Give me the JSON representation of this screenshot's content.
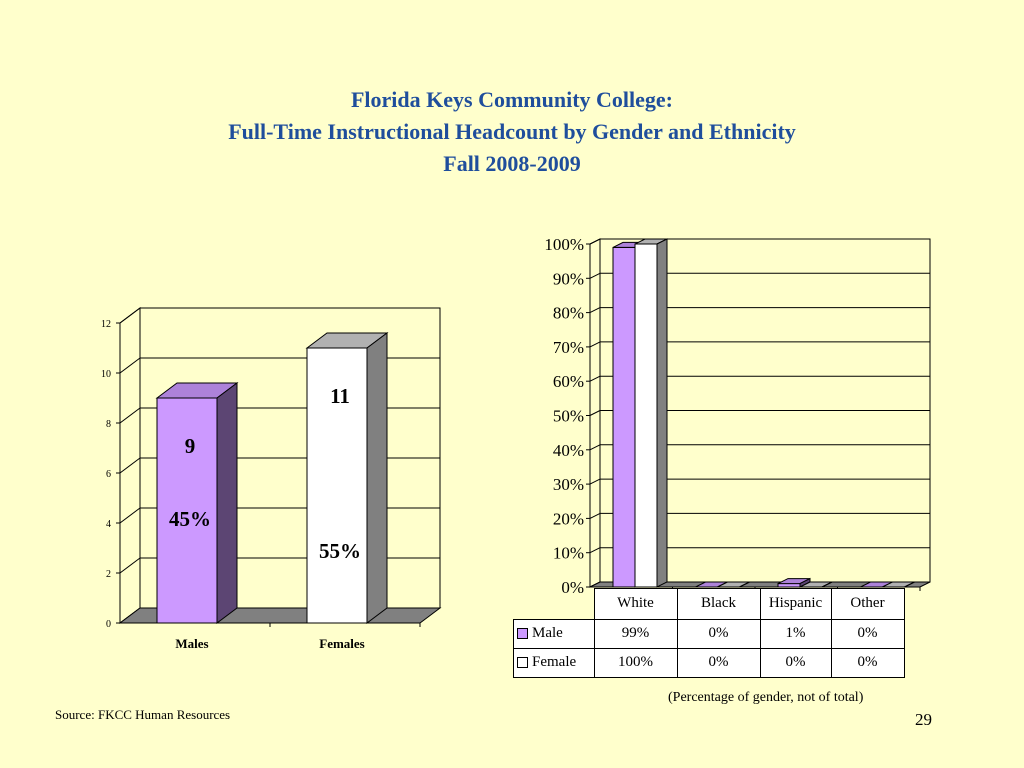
{
  "title": {
    "line1": "Florida Keys Community College:",
    "line2": "Full-Time Instructional Headcount by Gender and Ethnicity",
    "line3": "Fall 2008-2009"
  },
  "colors": {
    "male": "#cc99ff",
    "female": "#ffffff",
    "floor": "#808080",
    "background": "#ffffcc",
    "title": "#1f4e9c"
  },
  "chart_data": [
    {
      "type": "bar",
      "categories": [
        "Males",
        "Females"
      ],
      "values": [
        9,
        11
      ],
      "value_labels": [
        "9",
        "11"
      ],
      "percent_labels": [
        "45%",
        "55%"
      ],
      "ylim": [
        0,
        12
      ],
      "yticks": [
        "0",
        "2",
        "4",
        "6",
        "8",
        "10",
        "12"
      ],
      "grid": true,
      "three_d": true
    },
    {
      "type": "bar",
      "categories": [
        "White",
        "Black",
        "Hispanic",
        "Other"
      ],
      "series": [
        {
          "name": "Male",
          "values": [
            99,
            0,
            1,
            0
          ],
          "labels": [
            "99%",
            "0%",
            "1%",
            "0%"
          ]
        },
        {
          "name": "Female",
          "values": [
            100,
            0,
            0,
            0
          ],
          "labels": [
            "100%",
            "0%",
            "0%",
            "0%"
          ]
        }
      ],
      "ylim": [
        0,
        100
      ],
      "yticks": [
        "0%",
        "10%",
        "20%",
        "30%",
        "40%",
        "50%",
        "60%",
        "70%",
        "80%",
        "90%",
        "100%"
      ],
      "grid": true,
      "three_d": true,
      "data_table": true
    }
  ],
  "footnote": "(Percentage of gender, not of total)",
  "source": "Source: FKCC Human Resources",
  "page_number": "29"
}
